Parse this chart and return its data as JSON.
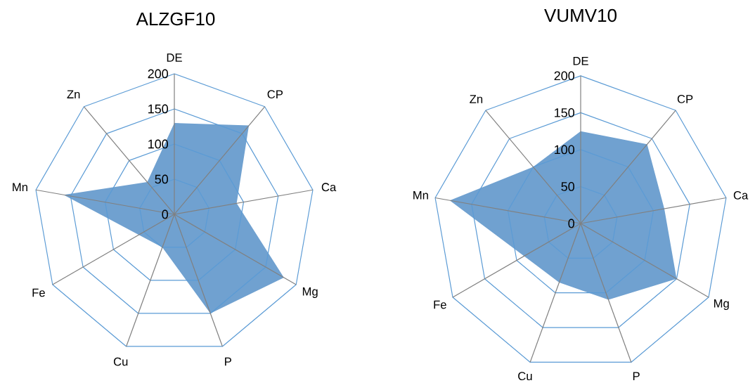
{
  "chart_data": [
    {
      "type": "radar",
      "title": "ALZGF10",
      "categories": [
        "DE",
        "CP",
        "Ca",
        "Mg",
        "P",
        "Cu",
        "Fe",
        "Mn",
        "Zn"
      ],
      "series": [
        {
          "color": "#70a1d0",
          "values": [
            130,
            165,
            90,
            180,
            150,
            50,
            null,
            160,
            60
          ]
        }
      ],
      "ylim": [
        0,
        200
      ],
      "yticks": [
        0,
        50,
        100,
        150,
        200
      ]
    },
    {
      "type": "radar",
      "title": "VUMV10",
      "categories": [
        "DE",
        "CP",
        "Ca",
        "Mg",
        "P",
        "Cu",
        "Fe",
        "Mn",
        "Zn"
      ],
      "series": [
        {
          "color": "#70a1d0",
          "values": [
            125,
            140,
            115,
            150,
            110,
            85,
            null,
            180,
            100
          ]
        }
      ],
      "ylim": [
        0,
        200
      ],
      "yticks": [
        0,
        50,
        100,
        150,
        200
      ]
    }
  ]
}
